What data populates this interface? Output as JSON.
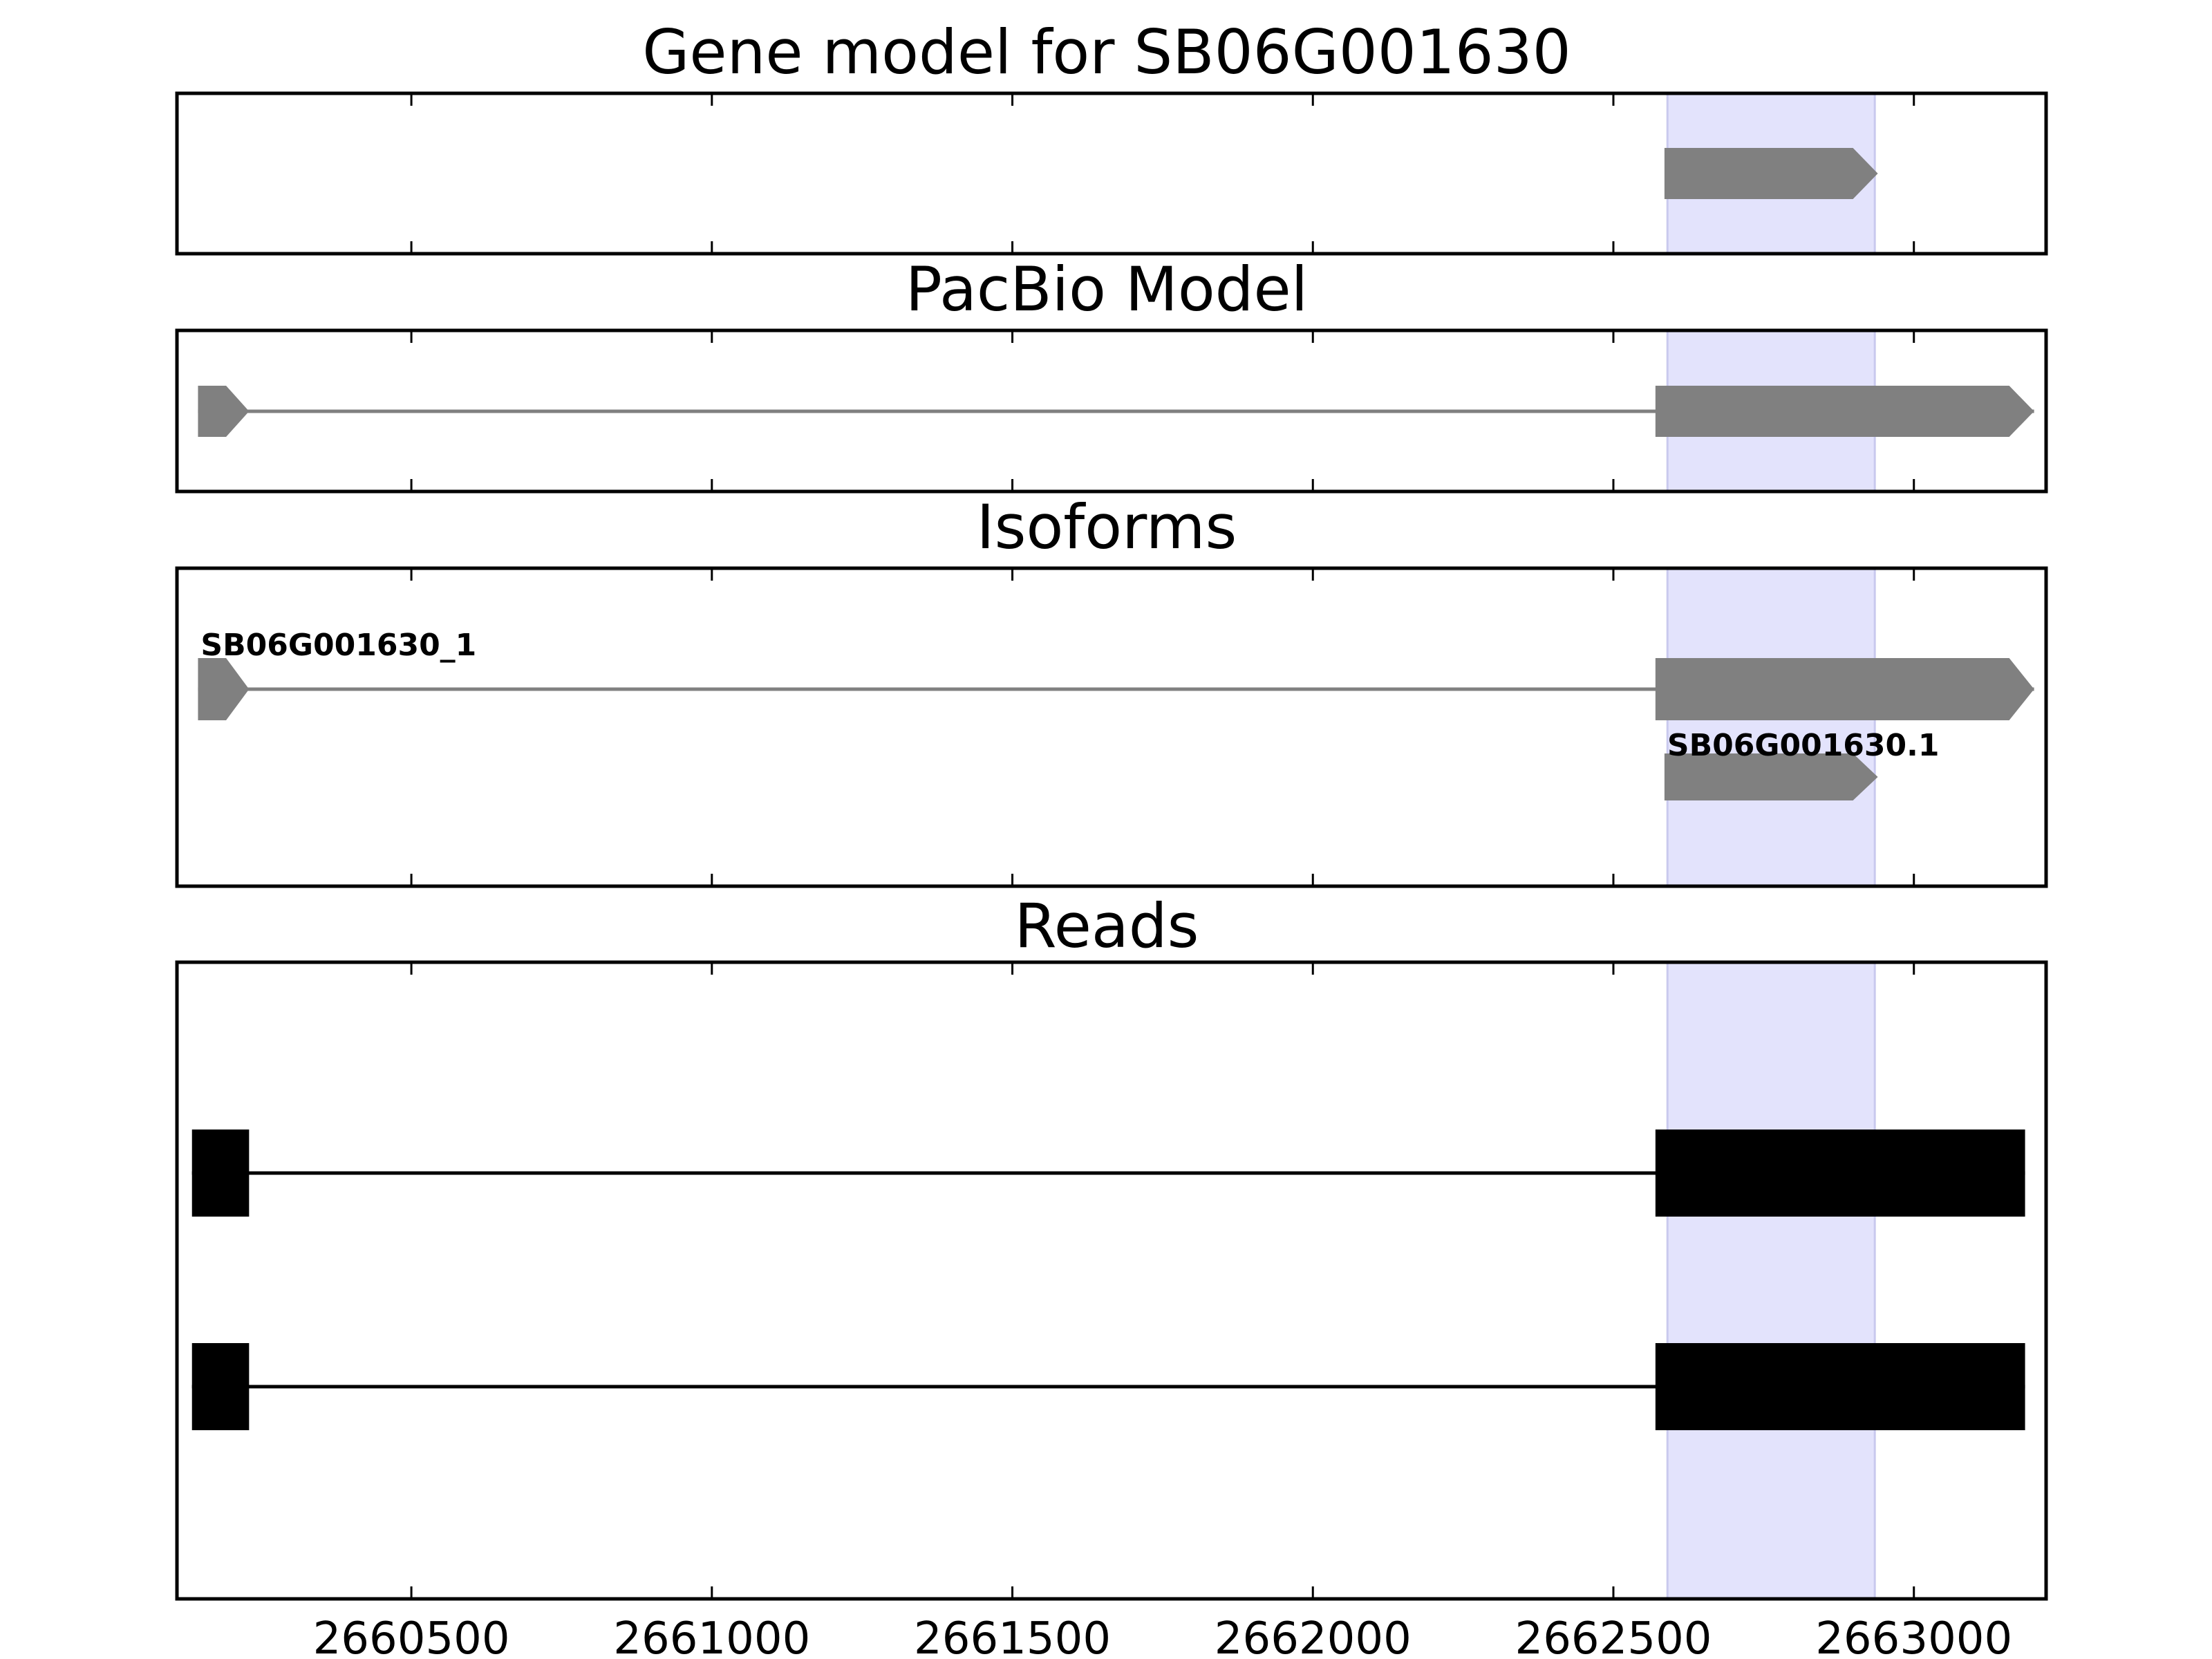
{
  "chart_data": {
    "type": "gene-model",
    "xlim": [
      2660110,
      2663220
    ],
    "x_ticks": [
      2660500,
      2661000,
      2661500,
      2662000,
      2662500,
      2663000
    ],
    "x_tick_labels": [
      "2660500",
      "2661000",
      "2661500",
      "2662000",
      "2662500",
      "2663000"
    ],
    "highlight_region": [
      2662590,
      2662935
    ],
    "colors": {
      "highlight": "#e3e3fc",
      "model": "#808080",
      "reads": "#000000",
      "frame": "#000000"
    },
    "panels": [
      {
        "id": "gene-model",
        "title": "Gene model for SB06G001630",
        "features": [
          {
            "kind": "gene",
            "label": "",
            "exons": [
              [
                2662585,
                2662940
              ]
            ],
            "strand": "+"
          }
        ]
      },
      {
        "id": "pacbio",
        "title": "PacBio Model",
        "features": [
          {
            "kind": "gene",
            "label": "",
            "exons": [
              [
                2660145,
                2660230
              ],
              [
                2662570,
                2663200
              ]
            ],
            "strand": "+"
          }
        ]
      },
      {
        "id": "isoforms",
        "title": "Isoforms",
        "features": [
          {
            "kind": "gene",
            "label": "SB06G001630_1",
            "exons": [
              [
                2660145,
                2660230
              ],
              [
                2662570,
                2663200
              ]
            ],
            "strand": "+"
          },
          {
            "kind": "gene",
            "label": "SB06G001630.1",
            "exons": [
              [
                2662585,
                2662940
              ]
            ],
            "strand": "+"
          }
        ]
      },
      {
        "id": "reads",
        "title": "Reads",
        "features": [
          {
            "kind": "read",
            "label": "",
            "exons": [
              [
                2660135,
                2660230
              ],
              [
                2662570,
                2663185
              ]
            ]
          },
          {
            "kind": "read",
            "label": "",
            "exons": [
              [
                2660135,
                2660230
              ],
              [
                2662570,
                2663185
              ]
            ]
          }
        ]
      }
    ]
  }
}
